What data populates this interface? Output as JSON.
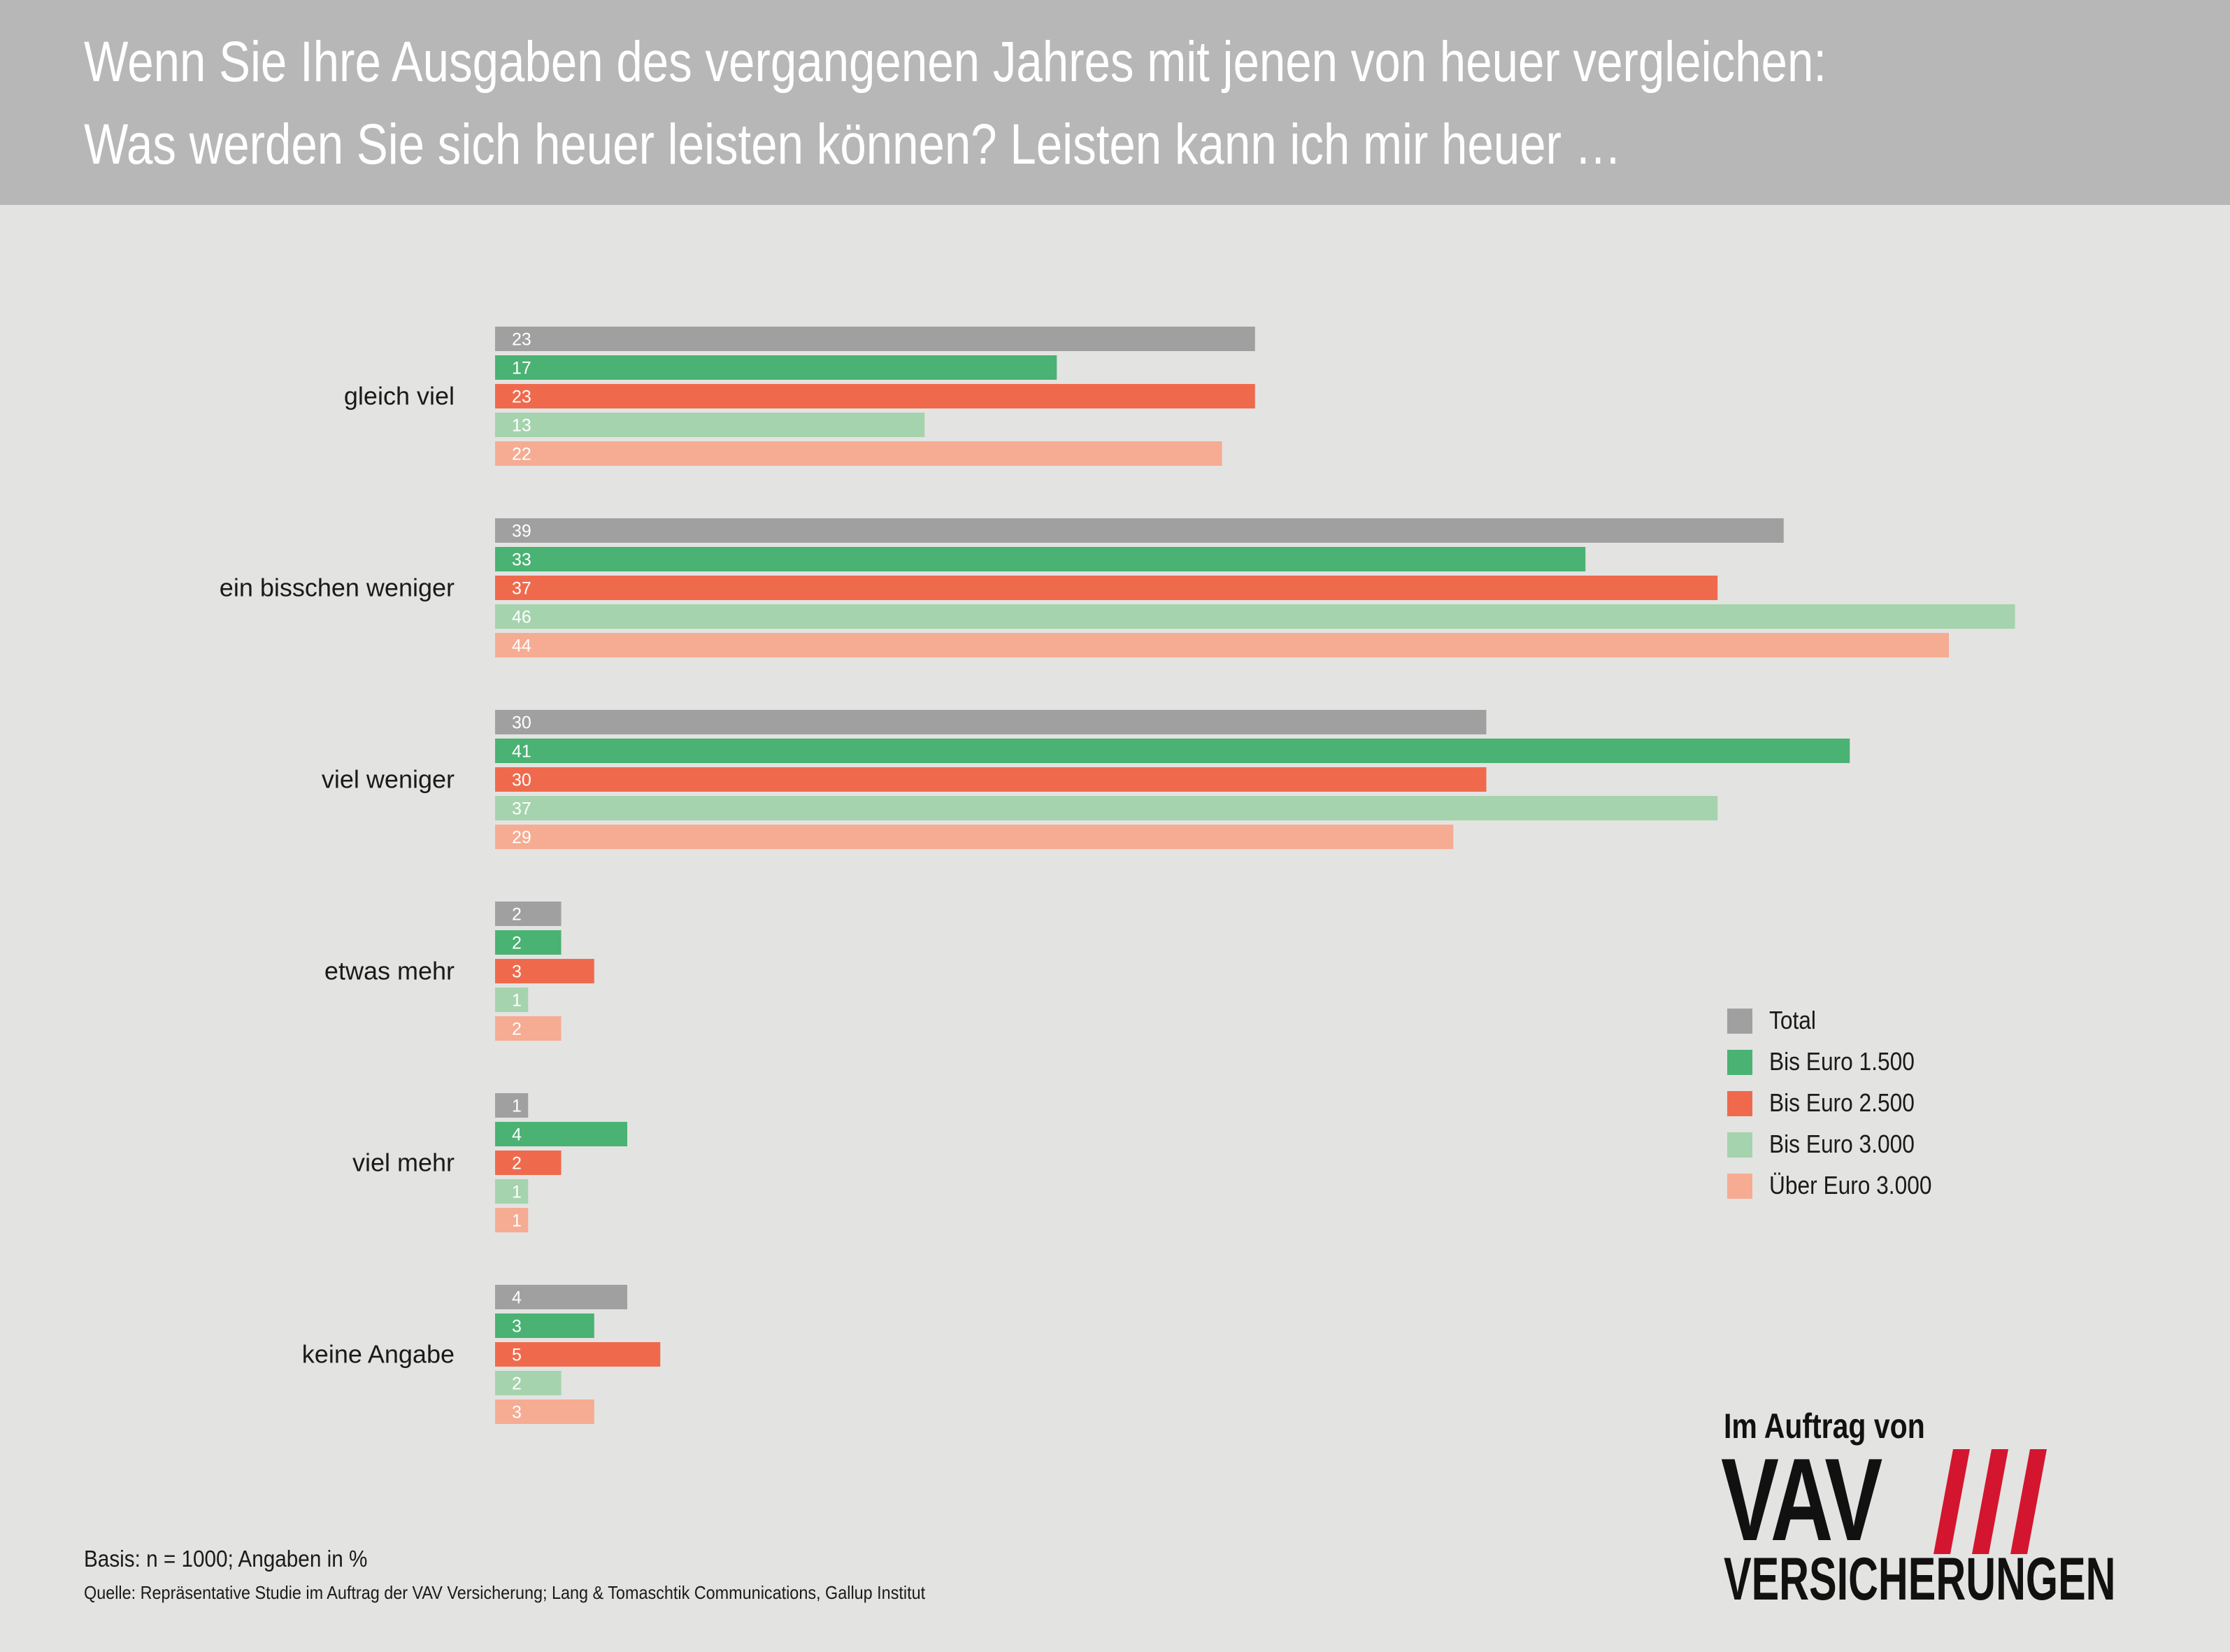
{
  "title": {
    "line1": "Wenn Sie Ihre Ausgaben des vergangenen Jahres mit jenen von heuer vergleichen:",
    "line2": "Was werden Sie sich heuer leisten können? Leisten kann ich mir heuer …"
  },
  "chart_data": {
    "type": "bar",
    "orientation": "horizontal",
    "categories": [
      "gleich viel",
      "ein bisschen weniger",
      "viel weniger",
      "etwas mehr",
      "viel mehr",
      "keine Angabe"
    ],
    "series": [
      {
        "name": "Total",
        "color": "#a0a0a0",
        "values": [
          23,
          39,
          30,
          2,
          1,
          4
        ]
      },
      {
        "name": "Bis Euro 1.500",
        "color": "#4ab273",
        "values": [
          17,
          33,
          41,
          2,
          4,
          3
        ]
      },
      {
        "name": "Bis Euro 2.500",
        "color": "#ef6a4d",
        "values": [
          23,
          37,
          30,
          3,
          2,
          5
        ]
      },
      {
        "name": "Bis Euro 3.000",
        "color": "#a5d3ad",
        "values": [
          13,
          46,
          37,
          1,
          1,
          2
        ]
      },
      {
        "name": "Über Euro 3.000",
        "color": "#f6ab93",
        "values": [
          22,
          44,
          29,
          2,
          1,
          3
        ]
      }
    ],
    "xlim": [
      0,
      46
    ],
    "legend_position": "right",
    "grid": false,
    "xlabel": "",
    "ylabel": ""
  },
  "footer": {
    "basis": "Basis: n = 1000; Angaben in %",
    "source": "Quelle: Repräsentative Studie im Auftrag der VAV Versicherung; Lang & Tomaschtik Communications, Gallup Institut"
  },
  "brand": {
    "intro": "Im Auftrag von",
    "name": "VAV",
    "subtitle": "VERSICHERUNGEN",
    "accent_color": "#d4152f"
  }
}
